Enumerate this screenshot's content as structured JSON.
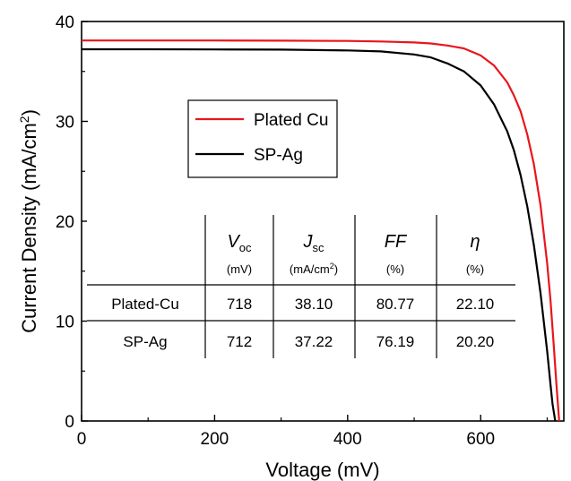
{
  "chart_data": {
    "type": "line",
    "xlabel": "Voltage (mV)",
    "ylabel_main": "Current Density (mA/cm",
    "ylabel_sup": "2",
    "ylabel_end": ")",
    "xlim": [
      0,
      725
    ],
    "ylim": [
      0,
      40
    ],
    "xticks": [
      0,
      200,
      400,
      600
    ],
    "yticks": [
      0,
      10,
      20,
      30,
      40
    ],
    "grid": false,
    "legend_position": "upper-left-inside",
    "series": [
      {
        "name": "Plated Cu",
        "color": "#e8161c",
        "x": [
          0,
          100,
          200,
          300,
          400,
          450,
          500,
          525,
          550,
          575,
          600,
          620,
          640,
          650,
          660,
          670,
          680,
          690,
          700,
          705,
          710,
          714,
          718
        ],
        "y": [
          38.1,
          38.1,
          38.1,
          38.08,
          38.05,
          38.0,
          37.9,
          37.8,
          37.6,
          37.3,
          36.6,
          35.6,
          33.9,
          32.6,
          31.0,
          28.7,
          25.7,
          21.6,
          15.8,
          12.0,
          7.4,
          3.6,
          0.0
        ]
      },
      {
        "name": "SP-Ag",
        "color": "#000000",
        "x": [
          0,
          100,
          200,
          300,
          400,
          450,
          500,
          525,
          550,
          575,
          600,
          620,
          640,
          650,
          660,
          670,
          680,
          690,
          700,
          705,
          708,
          712
        ],
        "y": [
          37.22,
          37.22,
          37.2,
          37.18,
          37.1,
          37.0,
          36.7,
          36.4,
          35.8,
          35.0,
          33.6,
          31.7,
          29.0,
          27.1,
          24.6,
          21.5,
          17.6,
          12.8,
          7.0,
          3.6,
          1.7,
          0.0
        ]
      }
    ],
    "table": {
      "headers": [
        {
          "main": "V",
          "sub": "oc",
          "unit": "(mV)"
        },
        {
          "main": "J",
          "sub": "sc",
          "unit_pre": "(mA/cm",
          "unit_sup": "2",
          "unit_post": ")"
        },
        {
          "main": "FF",
          "sub": "",
          "unit": "(%)"
        },
        {
          "main": "η",
          "sub": "",
          "unit": "(%)"
        }
      ],
      "rows": [
        {
          "label": "Plated-Cu",
          "color": "#e8161c",
          "values": [
            "718",
            "38.10",
            "80.77",
            "22.10"
          ]
        },
        {
          "label": "SP-Ag",
          "color": "#000000",
          "values": [
            "712",
            "37.22",
            "76.19",
            "20.20"
          ]
        }
      ]
    }
  }
}
